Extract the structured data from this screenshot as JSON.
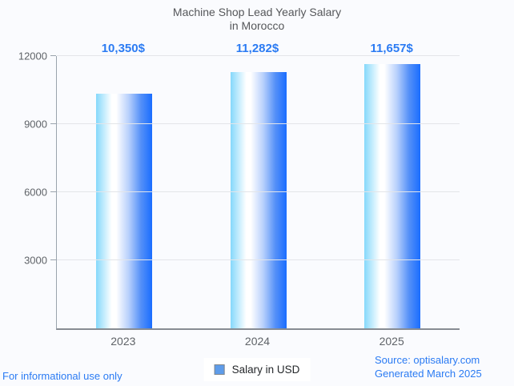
{
  "title": {
    "line1": "Machine Shop Lead Yearly Salary",
    "line2": "in Morocco"
  },
  "chart_data": {
    "type": "bar",
    "title": "Machine Shop Lead Yearly Salary in Morocco",
    "categories": [
      "2023",
      "2024",
      "2025"
    ],
    "values": [
      10350,
      11282,
      11657
    ],
    "value_labels": [
      "10,350$",
      "11,282$",
      "11,657$"
    ],
    "series_name": "Salary in USD",
    "xlabel": "",
    "ylabel": "",
    "ylim": [
      0,
      12000
    ],
    "yticks": [
      3000,
      6000,
      9000,
      12000
    ],
    "grid": "horizontal",
    "legend_position": "bottom-center",
    "bar_gradient": [
      "#85d8fb",
      "#ffffff",
      "#b9d1fc",
      "#1a6dff"
    ]
  },
  "legend": {
    "label": "Salary in USD",
    "swatch_fill": "#5e9cea",
    "swatch_border": "#80868b"
  },
  "footer": {
    "disclaimer": "For informational use only",
    "source": "Source: optisalary.com",
    "generated": "Generated March 2025"
  },
  "colors": {
    "accent_blue": "#2b7bf3",
    "title_text": "#55575a",
    "axis_text": "#5f6368",
    "gridline": "#e3e5e9",
    "axis_line": "#878c93",
    "page_bg": "#fafbfe"
  }
}
